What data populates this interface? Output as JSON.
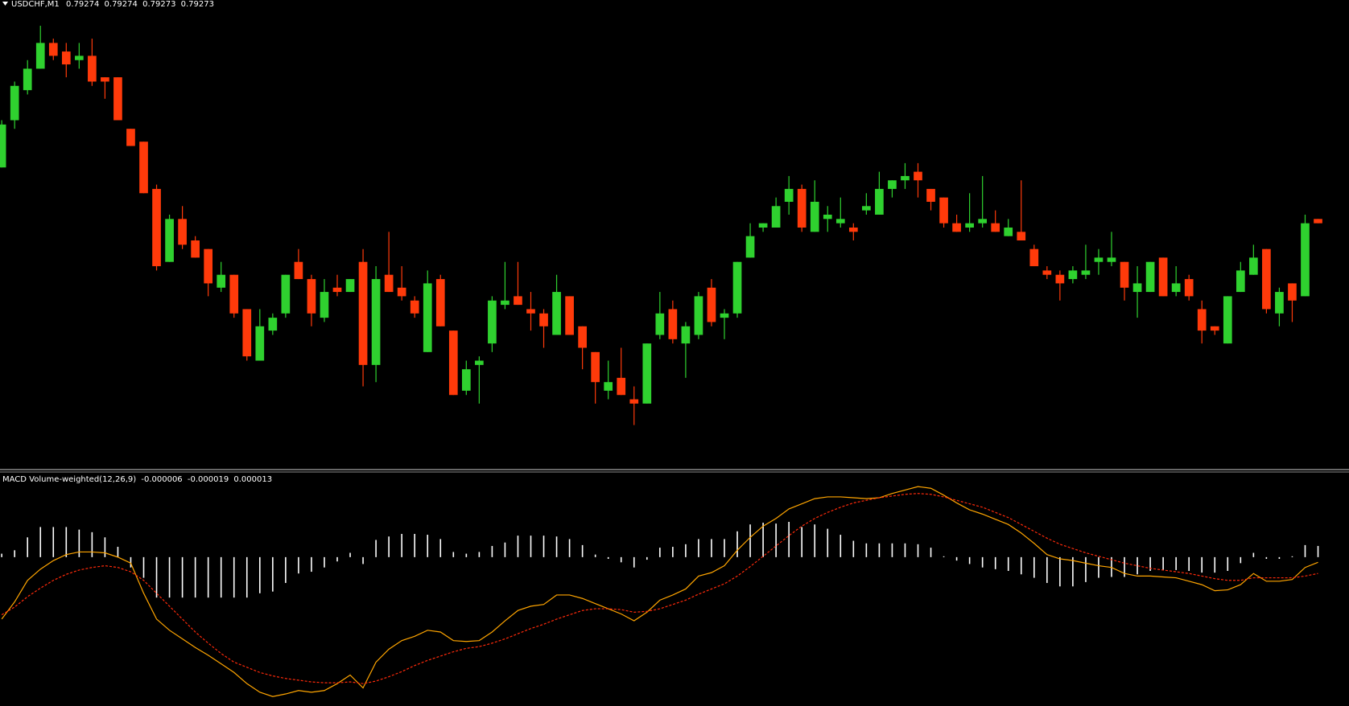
{
  "chart_data": [
    {
      "type": "candlestick",
      "title": "USDCHF,M1",
      "up_color": "#2fd12f",
      "down_color": "#ff3a0a",
      "ylim": [
        0.79216,
        0.79325
      ],
      "open": [
        0.79286,
        0.79297,
        0.79304,
        0.79309,
        0.79315,
        0.79313,
        0.79311,
        0.79312,
        0.79307,
        0.79307,
        0.79295,
        0.79292,
        0.79281,
        0.79264,
        0.79274,
        0.79269,
        0.79267,
        0.79258,
        0.79261,
        0.79253,
        0.79241,
        0.79248,
        0.79252,
        0.79264,
        0.7926,
        0.79251,
        0.79258,
        0.79257,
        0.79264,
        0.7924,
        0.79261,
        0.79258,
        0.79255,
        0.79243,
        0.7926,
        0.79248,
        0.79234,
        0.7924,
        0.79245,
        0.79254,
        0.79256,
        0.79253,
        0.79252,
        0.79247,
        0.79256,
        0.79249,
        0.79243,
        0.79234,
        0.79237,
        0.79232,
        0.79231,
        0.79247,
        0.79253,
        0.79245,
        0.79247,
        0.79258,
        0.79251,
        0.79252,
        0.79265,
        0.79272,
        0.79272,
        0.79278,
        0.79281,
        0.79271,
        0.79274,
        0.79273,
        0.79272,
        0.79276,
        0.79275,
        0.79281,
        0.79283,
        0.79285,
        0.79281,
        0.79279,
        0.79273,
        0.79272,
        0.79273,
        0.79273,
        0.7927,
        0.79271,
        0.79267,
        0.79262,
        0.79261,
        0.7926,
        0.79261,
        0.79264,
        0.79264,
        0.79264,
        0.79257,
        0.79257,
        0.79265,
        0.79257,
        0.7926,
        0.79253,
        0.79249,
        0.79245,
        0.79257,
        0.79261,
        0.79267,
        0.79252,
        0.79259,
        0.79256,
        0.79274
      ],
      "high": [
        0.79297,
        0.79306,
        0.79311,
        0.79319,
        0.79316,
        0.79315,
        0.79315,
        0.79316,
        0.79307,
        0.79307,
        0.79295,
        0.79292,
        0.79282,
        0.79275,
        0.79277,
        0.7927,
        0.79267,
        0.79264,
        0.79261,
        0.79253,
        0.79253,
        0.79252,
        0.79261,
        0.79267,
        0.79261,
        0.7926,
        0.79261,
        0.7926,
        0.79267,
        0.79263,
        0.79271,
        0.79263,
        0.79256,
        0.79262,
        0.79261,
        0.79248,
        0.79241,
        0.79242,
        0.79256,
        0.79264,
        0.79264,
        0.79257,
        0.79253,
        0.79261,
        0.79256,
        0.79249,
        0.79243,
        0.79241,
        0.79244,
        0.79235,
        0.79245,
        0.79257,
        0.79255,
        0.7925,
        0.79257,
        0.7926,
        0.79253,
        0.79264,
        0.79273,
        0.79273,
        0.79279,
        0.79284,
        0.79282,
        0.79283,
        0.79277,
        0.79279,
        0.79273,
        0.7928,
        0.79285,
        0.79283,
        0.79287,
        0.79287,
        0.79281,
        0.79279,
        0.79275,
        0.7928,
        0.79284,
        0.79276,
        0.79274,
        0.79283,
        0.79268,
        0.79263,
        0.79262,
        0.79263,
        0.79268,
        0.79267,
        0.79271,
        0.79264,
        0.79263,
        0.79264,
        0.79265,
        0.79263,
        0.79261,
        0.79255,
        0.79249,
        0.79256,
        0.79264,
        0.79268,
        0.79267,
        0.79258,
        0.79259,
        0.79275,
        0.79274
      ],
      "low": [
        0.79286,
        0.79295,
        0.79303,
        0.79309,
        0.79311,
        0.79307,
        0.79309,
        0.79305,
        0.79302,
        0.79297,
        0.79291,
        0.7928,
        0.79262,
        0.79264,
        0.79267,
        0.79265,
        0.79256,
        0.79257,
        0.79251,
        0.79241,
        0.79241,
        0.79247,
        0.79251,
        0.7926,
        0.79249,
        0.7925,
        0.79256,
        0.79257,
        0.79235,
        0.79236,
        0.79257,
        0.79255,
        0.79251,
        0.79243,
        0.79249,
        0.79233,
        0.79233,
        0.79231,
        0.79243,
        0.79253,
        0.79254,
        0.79248,
        0.79244,
        0.79247,
        0.79247,
        0.79239,
        0.79231,
        0.79232,
        0.79233,
        0.79226,
        0.79231,
        0.79246,
        0.79245,
        0.79237,
        0.79246,
        0.79249,
        0.79246,
        0.79251,
        0.79265,
        0.79271,
        0.79272,
        0.79275,
        0.79271,
        0.79271,
        0.79271,
        0.79272,
        0.79269,
        0.79275,
        0.79275,
        0.79279,
        0.79281,
        0.79279,
        0.79276,
        0.79272,
        0.79271,
        0.79271,
        0.79272,
        0.79271,
        0.7927,
        0.79269,
        0.79263,
        0.7926,
        0.79255,
        0.79259,
        0.7926,
        0.79261,
        0.79263,
        0.79255,
        0.79251,
        0.79257,
        0.79256,
        0.79256,
        0.79255,
        0.79245,
        0.79247,
        0.79245,
        0.79257,
        0.79261,
        0.79252,
        0.79249,
        0.7925,
        0.79256,
        0.79273
      ],
      "close": [
        0.79296,
        0.79305,
        0.79309,
        0.79315,
        0.79312,
        0.7931,
        0.79312,
        0.79306,
        0.79306,
        0.79297,
        0.79291,
        0.7928,
        0.79263,
        0.79274,
        0.79268,
        0.79265,
        0.79259,
        0.79261,
        0.79252,
        0.79242,
        0.79249,
        0.79251,
        0.79261,
        0.7926,
        0.79252,
        0.79257,
        0.79257,
        0.7926,
        0.7924,
        0.7926,
        0.79257,
        0.79256,
        0.79252,
        0.79259,
        0.79249,
        0.79233,
        0.79239,
        0.79241,
        0.79255,
        0.79255,
        0.79254,
        0.79252,
        0.79249,
        0.79257,
        0.79247,
        0.79244,
        0.79236,
        0.79236,
        0.79233,
        0.79231,
        0.79245,
        0.79252,
        0.79246,
        0.79249,
        0.79256,
        0.7925,
        0.79252,
        0.79264,
        0.7927,
        0.79273,
        0.79277,
        0.79281,
        0.79272,
        0.79278,
        0.79275,
        0.79274,
        0.79271,
        0.79277,
        0.79281,
        0.79283,
        0.79284,
        0.79283,
        0.79278,
        0.79273,
        0.79271,
        0.79273,
        0.79274,
        0.79271,
        0.79272,
        0.79269,
        0.79263,
        0.79261,
        0.79259,
        0.79262,
        0.79262,
        0.79265,
        0.79265,
        0.79258,
        0.79259,
        0.79264,
        0.79256,
        0.79259,
        0.79256,
        0.79248,
        0.79248,
        0.79256,
        0.79262,
        0.79265,
        0.79253,
        0.79257,
        0.79255,
        0.79273,
        0.79273
      ]
    },
    {
      "type": "macd",
      "title": "MACD Volume-weighted(12,26,9)",
      "ylim": [
        -0.000173,
        9.8e-05
      ],
      "series": [
        {
          "style": "histogram",
          "color": "#ffffff",
          "values": [
            4e-06,
            8e-06,
            2.3e-05,
            3.5e-05,
            3.5e-05,
            3.5e-05,
            3.2e-05,
            2.9e-05,
            2.3e-05,
            1.2e-05,
            -1.2e-05,
            -2.4e-05,
            -4.7e-05,
            -4.7e-05,
            -4.7e-05,
            -4.7e-05,
            -4.7e-05,
            -4.7e-05,
            -4.7e-05,
            -4.7e-05,
            -4.2e-05,
            -4e-05,
            -3e-05,
            -1.9e-05,
            -1.7e-05,
            -1.2e-05,
            -5e-06,
            5e-06,
            -8e-06,
            2e-05,
            2.4e-05,
            2.7e-05,
            2.7e-05,
            2.6e-05,
            2.1e-05,
            6e-06,
            4e-06,
            6e-06,
            1.3e-05,
            1.7e-05,
            2.5e-05,
            2.5e-05,
            2.5e-05,
            2.4e-05,
            2.1e-05,
            1.4e-05,
            3e-06,
            -2e-06,
            -6e-06,
            -1.2e-05,
            -3e-06,
            1.1e-05,
            1.2e-05,
            1.5e-05,
            2.1e-05,
            2.1e-05,
            2.1e-05,
            3e-05,
            3.8e-05,
            4e-05,
            3.9e-05,
            4.1e-05,
            3.5e-05,
            3.8e-05,
            3.3e-05,
            2.6e-05,
            1.9e-05,
            1.6e-05,
            1.6e-05,
            1.6e-05,
            1.6e-05,
            1.5e-05,
            1.1e-05,
            1e-06,
            -4e-06,
            -8e-06,
            -1.2e-05,
            -1.4e-05,
            -1.6e-05,
            -2e-05,
            -2.4e-05,
            -3e-05,
            -3.4e-05,
            -3.4e-05,
            -2.9e-05,
            -2.4e-05,
            -2.3e-05,
            -2.3e-05,
            -2e-05,
            -1.6e-05,
            -1.5e-05,
            -1.5e-05,
            -1.6e-05,
            -1.8e-05,
            -1.8e-05,
            -1.6e-05,
            -7e-06,
            5e-06,
            -2e-06,
            -2e-06,
            1e-06,
            1.4e-05,
            1.3e-05
          ]
        },
        {
          "style": "line",
          "color": "#ffa500",
          "values": [
            -7.2e-05,
            -5.2e-05,
            -2.7e-05,
            -1.4e-05,
            -4e-06,
            3e-06,
            6e-06,
            6e-06,
            5e-06,
            0,
            -7e-06,
            -4.2e-05,
            -7.2e-05,
            -8.5e-05,
            -9.5e-05,
            -0.000105,
            -0.000114,
            -0.000124,
            -0.000134,
            -0.000147,
            -0.000157,
            -0.000162,
            -0.000159,
            -0.000155,
            -0.000157,
            -0.000155,
            -0.000147,
            -0.000137,
            -0.000152,
            -0.000122,
            -0.000107,
            -9.7e-05,
            -9.2e-05,
            -8.5e-05,
            -8.7e-05,
            -9.7e-05,
            -9.8e-05,
            -9.7e-05,
            -8.7e-05,
            -7.4e-05,
            -6.2e-05,
            -5.7e-05,
            -5.5e-05,
            -4.4e-05,
            -4.4e-05,
            -4.8e-05,
            -5.4e-05,
            -6e-05,
            -6.6e-05,
            -7.4e-05,
            -6.4e-05,
            -5e-05,
            -4.4e-05,
            -3.7e-05,
            -2.2e-05,
            -1.8e-05,
            -1e-05,
            8e-06,
            2.3e-05,
            3.6e-05,
            4.5e-05,
            5.6e-05,
            6.2e-05,
            6.8e-05,
            7e-05,
            7e-05,
            6.9e-05,
            6.8e-05,
            6.9e-05,
            7.4e-05,
            7.8e-05,
            8.2e-05,
            8e-05,
            7.2e-05,
            6.3e-05,
            5.5e-05,
            5e-05,
            4.4e-05,
            3.8e-05,
            2.8e-05,
            1.6e-05,
            3e-06,
            -2e-06,
            -4e-06,
            -7e-06,
            -1e-05,
            -1.2e-05,
            -1.9e-05,
            -2.2e-05,
            -2.2e-05,
            -2.3e-05,
            -2.4e-05,
            -2.8e-05,
            -3.2e-05,
            -3.9e-05,
            -3.8e-05,
            -3.2e-05,
            -1.9e-05,
            -2.8e-05,
            -2.8e-05,
            -2.6e-05,
            -1.2e-05,
            -6e-06
          ]
        },
        {
          "style": "dashed",
          "color": "#ff2a0a",
          "values": [
            -6.7e-05,
            -5.8e-05,
            -4.6e-05,
            -3.6e-05,
            -2.7e-05,
            -2e-05,
            -1.5e-05,
            -1.2e-05,
            -1e-05,
            -1.2e-05,
            -1.7e-05,
            -2.7e-05,
            -4.2e-05,
            -5.7e-05,
            -7.2e-05,
            -8.7e-05,
            -0.0001,
            -0.000112,
            -0.000122,
            -0.000128,
            -0.000134,
            -0.000138,
            -0.000141,
            -0.000143,
            -0.000145,
            -0.000146,
            -0.000146,
            -0.000145,
            -0.000147,
            -0.000144,
            -0.000139,
            -0.000133,
            -0.000126,
            -0.00012,
            -0.000115,
            -0.00011,
            -0.000106,
            -0.000104,
            -0.0001,
            -9.5e-05,
            -8.9e-05,
            -8.3e-05,
            -7.8e-05,
            -7.2e-05,
            -6.7e-05,
            -6.2e-05,
            -6e-05,
            -6e-05,
            -6.1e-05,
            -6.4e-05,
            -6.3e-05,
            -6e-05,
            -5.5e-05,
            -5e-05,
            -4.3e-05,
            -3.7e-05,
            -3.1e-05,
            -2.2e-05,
            -1.1e-05,
            1e-06,
            1.3e-05,
            2.5e-05,
            3.6e-05,
            4.5e-05,
            5.2e-05,
            5.8e-05,
            6.3e-05,
            6.6e-05,
            6.9e-05,
            7.1e-05,
            7.3e-05,
            7.4e-05,
            7.3e-05,
            7e-05,
            6.6e-05,
            6.2e-05,
            5.8e-05,
            5.2e-05,
            4.6e-05,
            3.8e-05,
            3e-05,
            2.2e-05,
            1.5e-05,
            1e-05,
            5e-06,
            1e-06,
            -3e-06,
            -7e-06,
            -1e-05,
            -1.3e-05,
            -1.5e-05,
            -1.7e-05,
            -1.9e-05,
            -2.2e-05,
            -2.5e-05,
            -2.7e-05,
            -2.7e-05,
            -2.4e-05,
            -2.4e-05,
            -2.4e-05,
            -2.4e-05,
            -2.2e-05,
            -1.9e-05
          ]
        }
      ]
    }
  ]
}
